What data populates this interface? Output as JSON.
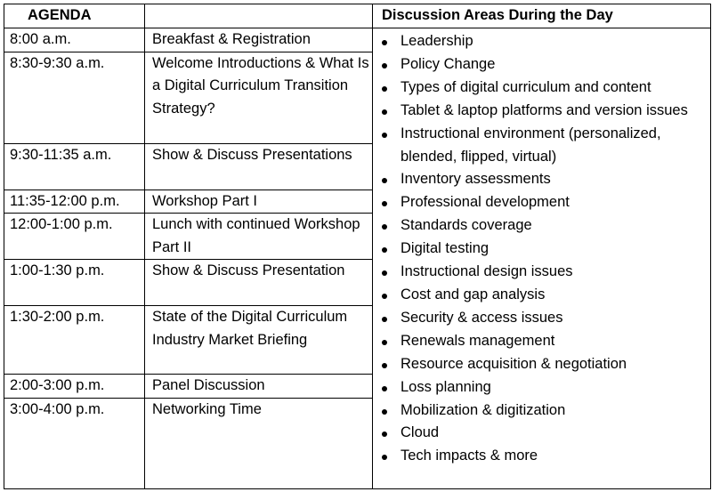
{
  "header": {
    "agenda": "AGENDA",
    "session": "",
    "topics": "Discussion Areas During the Day"
  },
  "agenda": [
    {
      "time": "8:00 a.m.",
      "session": "Breakfast & Registration"
    },
    {
      "time": "8:30-9:30 a.m.",
      "session": "Welcome Introductions & What Is a Digital Curriculum Transition Strategy?"
    },
    {
      "time": "9:30-11:35 a.m.",
      "session": "Show & Discuss Presentations"
    },
    {
      "time": "11:35-12:00 p.m.",
      "session": "Workshop Part I"
    },
    {
      "time": "12:00-1:00 p.m.",
      "session": "Lunch with continued Workshop Part II"
    },
    {
      "time": "1:00-1:30 p.m.",
      "session": "Show & Discuss Presentation"
    },
    {
      "time": "1:30-2:00 p.m.",
      "session": "State of the Digital Curriculum Industry Market Briefing"
    },
    {
      "time": "2:00-3:00 p.m.",
      "session": "Panel Discussion"
    },
    {
      "time": "3:00-4:00 p.m.",
      "session": "Networking Time"
    }
  ],
  "topics": [
    "Leadership",
    "Policy Change",
    "Types of digital curriculum and content",
    "Tablet & laptop platforms and version issues",
    "Instructional environment (personalized, blended, flipped, virtual)",
    "Inventory assessments",
    "Professional development",
    "Standards coverage",
    "Digital testing",
    "Instructional design issues",
    "Cost and gap analysis",
    "Security & access issues",
    "Renewals management",
    "Resource acquisition & negotiation",
    "Loss planning",
    "Mobilization & digitization",
    "Cloud",
    "Tech impacts & more"
  ]
}
